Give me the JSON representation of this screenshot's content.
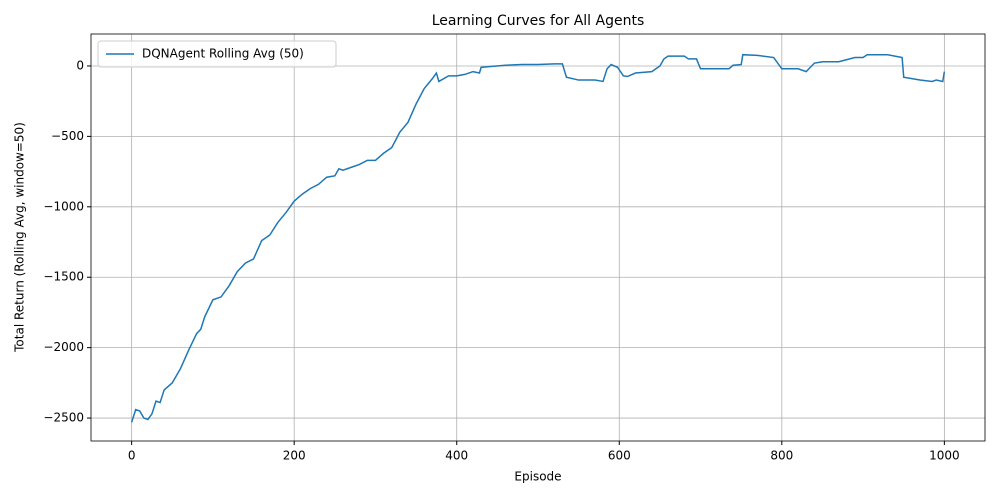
{
  "chart_data": {
    "type": "line",
    "title": "Learning Curves for All Agents",
    "x_label": "Episode",
    "y_label": "Total Return (Rolling Avg, window=50)",
    "x": [
      0,
      5,
      10,
      15,
      20,
      25,
      30,
      35,
      40,
      50,
      60,
      70,
      80,
      85,
      90,
      100,
      110,
      120,
      130,
      140,
      150,
      160,
      170,
      180,
      190,
      200,
      210,
      220,
      230,
      240,
      250,
      255,
      260,
      270,
      280,
      290,
      300,
      310,
      320,
      330,
      340,
      350,
      360,
      370,
      375,
      378,
      390,
      400,
      410,
      420,
      428,
      430,
      440,
      460,
      480,
      500,
      520,
      530,
      535,
      550,
      570,
      580,
      585,
      590,
      598,
      605,
      610,
      620,
      640,
      650,
      655,
      660,
      680,
      685,
      695,
      700,
      720,
      735,
      740,
      750,
      752,
      770,
      790,
      800,
      820,
      830,
      840,
      850,
      870,
      890,
      900,
      905,
      930,
      948,
      950,
      970,
      985,
      990,
      998,
      1000
    ],
    "series": [
      {
        "name": "DQNAgent Rolling Avg (50)",
        "color": "#1f77b4",
        "values": [
          -2530,
          -2440,
          -2450,
          -2500,
          -2510,
          -2470,
          -2380,
          -2390,
          -2300,
          -2250,
          -2150,
          -2020,
          -1900,
          -1870,
          -1780,
          -1660,
          -1640,
          -1560,
          -1460,
          -1400,
          -1370,
          -1240,
          -1200,
          -1110,
          -1040,
          -960,
          -910,
          -870,
          -840,
          -790,
          -780,
          -730,
          -740,
          -720,
          -700,
          -670,
          -670,
          -620,
          -580,
          -470,
          -400,
          -270,
          -160,
          -90,
          -50,
          -110,
          -70,
          -70,
          -60,
          -40,
          -50,
          -10,
          -5,
          5,
          10,
          10,
          15,
          15,
          -80,
          -100,
          -100,
          -110,
          -20,
          10,
          -10,
          -70,
          -75,
          -50,
          -40,
          0,
          50,
          70,
          70,
          50,
          50,
          -20,
          -20,
          -20,
          5,
          10,
          80,
          75,
          60,
          -20,
          -20,
          -40,
          20,
          30,
          30,
          60,
          60,
          80,
          80,
          60,
          -80,
          -100,
          -110,
          -100,
          -110,
          -40
        ]
      }
    ],
    "xlim": [
      -50,
      1050
    ],
    "ylim": [
      -2663,
      227
    ],
    "xticks": [
      0,
      200,
      400,
      600,
      800,
      1000
    ],
    "yticks": [
      {
        "value": -2500,
        "label": "−2500"
      },
      {
        "value": -2000,
        "label": "−2000"
      },
      {
        "value": -1500,
        "label": "−1500"
      },
      {
        "value": -1000,
        "label": "−1000"
      },
      {
        "value": -500,
        "label": "−500"
      },
      0
    ],
    "grid": true,
    "legend": "upper left"
  }
}
